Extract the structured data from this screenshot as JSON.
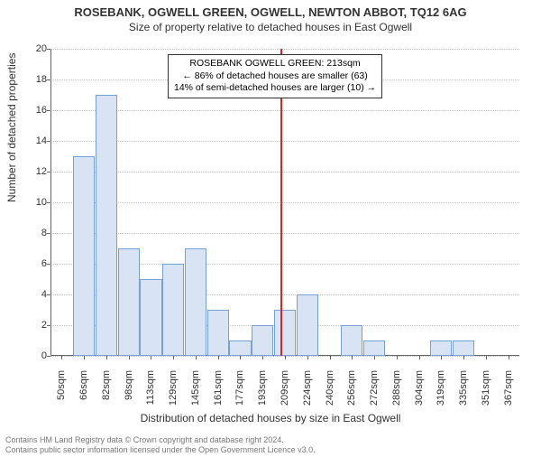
{
  "title": "ROSEBANK, OGWELL GREEN, OGWELL, NEWTON ABBOT, TQ12 6AG",
  "subtitle": "Size of property relative to detached houses in East Ogwell",
  "chart": {
    "type": "histogram",
    "ylabel": "Number of detached properties",
    "xlabel": "Distribution of detached houses by size in East Ogwell",
    "ylim": [
      0,
      20
    ],
    "ytick_step": 2,
    "bar_fill": "#d8e3f4",
    "bar_border": "#7aa0d6",
    "grid_color": "#c0c0c0",
    "background": "#ffffff",
    "marker_color": "#d62728",
    "xcategories": [
      "50sqm",
      "66sqm",
      "82sqm",
      "98sqm",
      "113sqm",
      "129sqm",
      "145sqm",
      "161sqm",
      "177sqm",
      "193sqm",
      "209sqm",
      "224sqm",
      "240sqm",
      "256sqm",
      "272sqm",
      "288sqm",
      "304sqm",
      "319sqm",
      "335sqm",
      "351sqm",
      "367sqm"
    ],
    "values": [
      0,
      13,
      17,
      7,
      5,
      6,
      7,
      3,
      1,
      2,
      3,
      4,
      0,
      2,
      1,
      0,
      0,
      1,
      1,
      0,
      0
    ],
    "marker_position": 10.3
  },
  "annotation": {
    "line1": "ROSEBANK OGWELL GREEN: 213sqm",
    "line2": "← 86% of detached houses are smaller (63)",
    "line3": "14% of semi-detached houses are larger (10) →"
  },
  "footer": {
    "line1": "Contains HM Land Registry data © Crown copyright and database right 2024.",
    "line2": "Contains public sector information licensed under the Open Government Licence v3.0."
  }
}
